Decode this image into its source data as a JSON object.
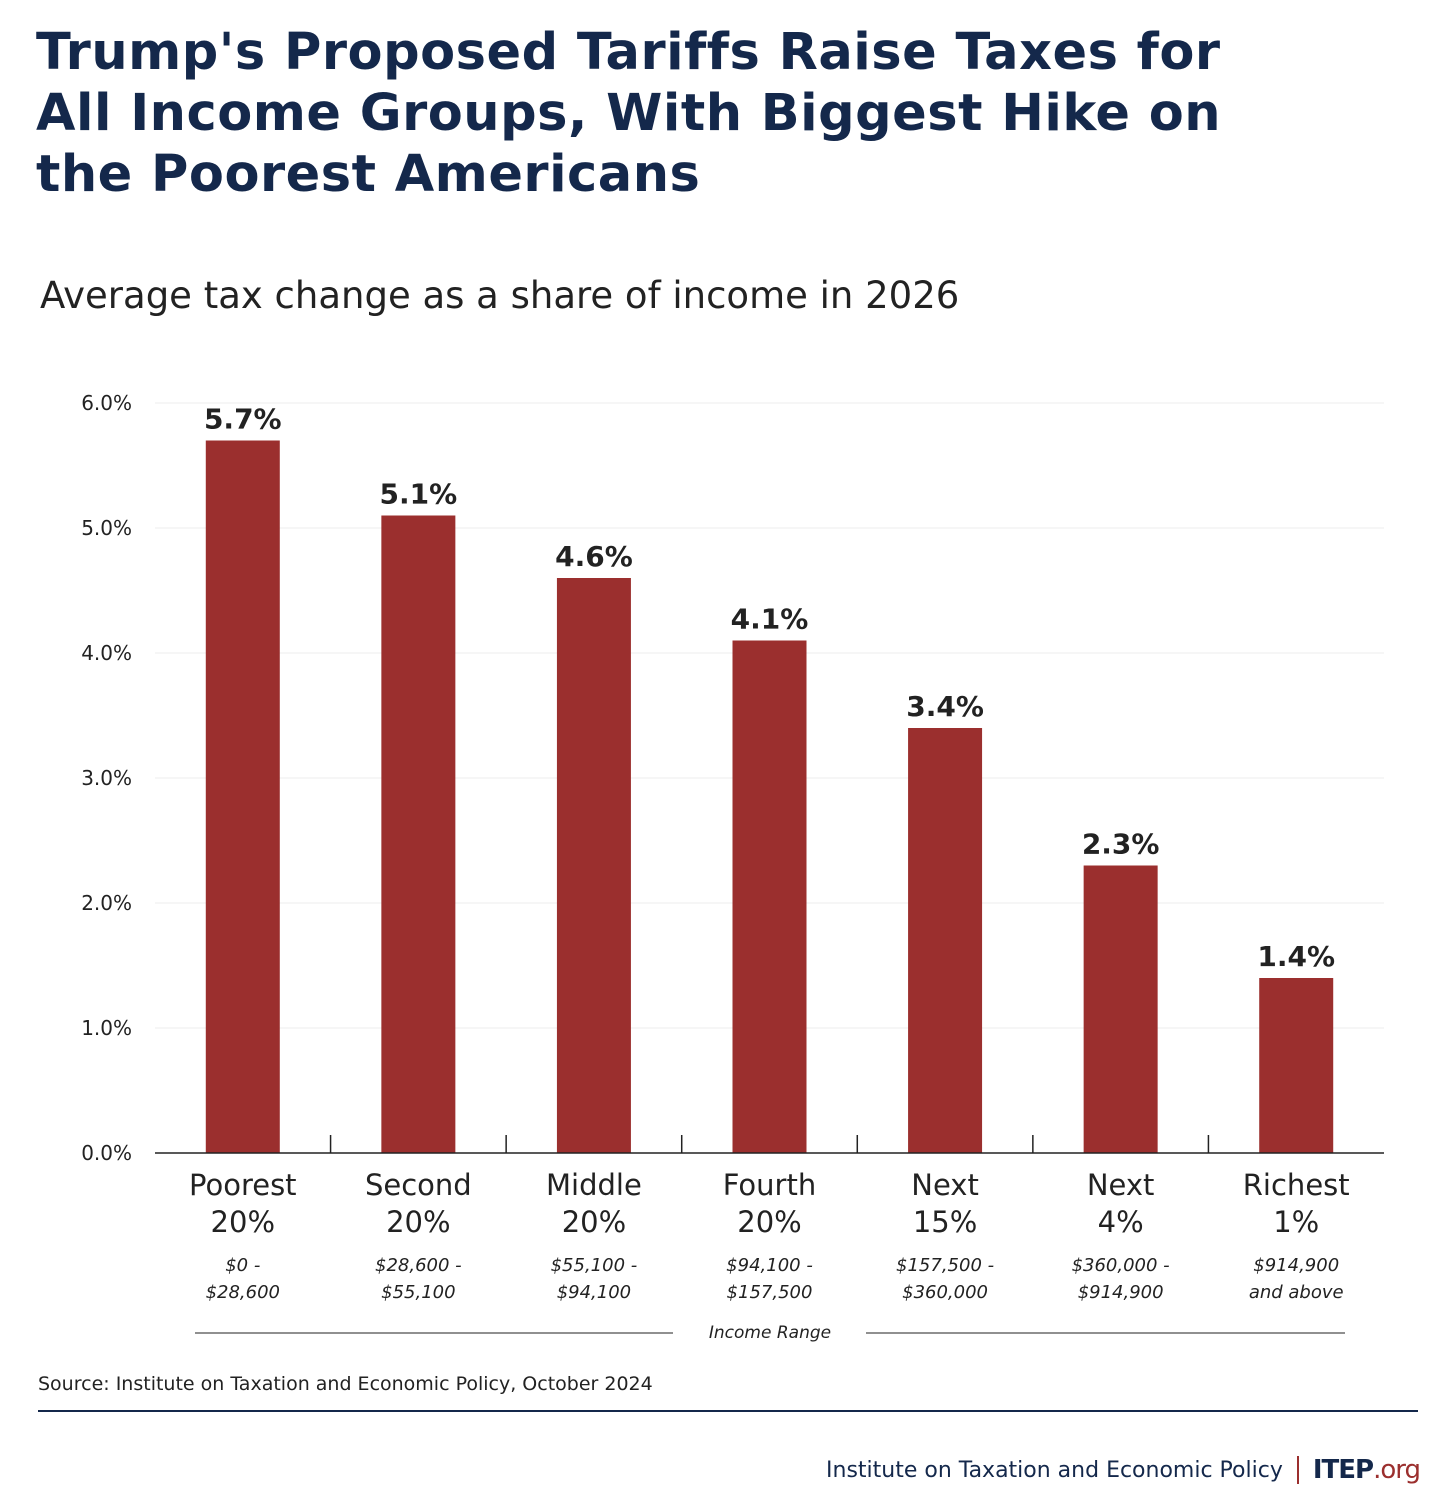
{
  "title": "Trump's Proposed Tariffs Raise Taxes for All Income Groups, With Biggest Hike on the Poorest Americans",
  "subtitle": "Average tax change as a share of income in 2026",
  "source": "Source: Institute on Taxation and Economic Policy, October 2024",
  "footer": {
    "org_name": "Institute on Taxation and Economic Policy",
    "logo_main": "ITEP",
    "logo_suffix": ".org"
  },
  "colors": {
    "bar": "#9b2f2e",
    "title": "#14284b"
  },
  "chart_data": {
    "type": "bar",
    "categories": [
      {
        "line1": "Poorest",
        "line2": "20%",
        "range1": "$0 -",
        "range2": "$28,600"
      },
      {
        "line1": "Second",
        "line2": "20%",
        "range1": "$28,600 -",
        "range2": "$55,100"
      },
      {
        "line1": "Middle",
        "line2": "20%",
        "range1": "$55,100 -",
        "range2": "$94,100"
      },
      {
        "line1": "Fourth",
        "line2": "20%",
        "range1": "$94,100 -",
        "range2": "$157,500"
      },
      {
        "line1": "Next",
        "line2": "15%",
        "range1": "$157,500 -",
        "range2": "$360,000"
      },
      {
        "line1": "Next",
        "line2": "4%",
        "range1": "$360,000 -",
        "range2": "$914,900"
      },
      {
        "line1": "Richest",
        "line2": "1%",
        "range1": "$914,900",
        "range2": "and above"
      }
    ],
    "values": [
      5.7,
      5.1,
      4.6,
      4.1,
      3.4,
      2.3,
      1.4
    ],
    "data_labels": [
      "5.7%",
      "5.1%",
      "4.6%",
      "4.1%",
      "3.4%",
      "2.3%",
      "1.4%"
    ],
    "yticks": [
      "0.0%",
      "1.0%",
      "2.0%",
      "3.0%",
      "4.0%",
      "5.0%",
      "6.0%"
    ],
    "ylim": [
      0,
      6
    ],
    "xlabel": "Income Range",
    "grid": true
  }
}
